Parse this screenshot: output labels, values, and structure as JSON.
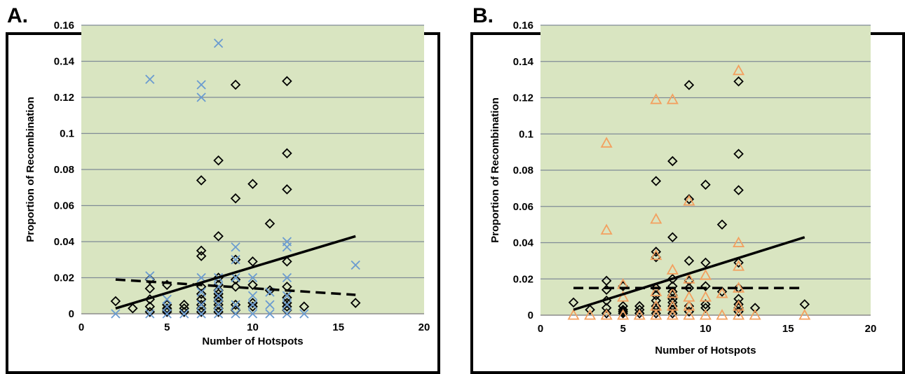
{
  "colors": {
    "plot_bg": "#d9e5c1",
    "gridline": "#7f8a96",
    "diamond": "#000000",
    "cross": "#6a9bd0",
    "triangle": "#f3a05f"
  },
  "chart_data": [
    {
      "panel_label": "A.",
      "type": "scatter",
      "xlabel": "Number of Hotspots",
      "ylabel": "Proportion of Recombination",
      "xlim": [
        0,
        20
      ],
      "ylim": [
        0,
        0.16
      ],
      "xticks": [
        "0",
        "5",
        "10",
        "15",
        "20"
      ],
      "yticks": [
        "0",
        "0.02",
        "0.04",
        "0.06",
        "0.08",
        "0.1",
        "0.12",
        "0.14",
        "0.16"
      ],
      "grid": true,
      "series": [
        {
          "marker": "diamond",
          "color": "#000000",
          "x": [
            2,
            3,
            4,
            4,
            4,
            4,
            4,
            5,
            5,
            5,
            5,
            5,
            6,
            6,
            6,
            7,
            7,
            7,
            7,
            7,
            7,
            7,
            7,
            7,
            8,
            8,
            8,
            8,
            8,
            8,
            8,
            8,
            8,
            8,
            8,
            9,
            9,
            9,
            9,
            9,
            9,
            9,
            10,
            10,
            10,
            10,
            10,
            11,
            11,
            12,
            12,
            12,
            12,
            12,
            12,
            12,
            12,
            12,
            13,
            16
          ],
          "y": [
            0.007,
            0.003,
            0.019,
            0.014,
            0.008,
            0.004,
            0.001,
            0.016,
            0.005,
            0.003,
            0.002,
            0.001,
            0.005,
            0.003,
            0.001,
            0.074,
            0.035,
            0.032,
            0.015,
            0.011,
            0.008,
            0.005,
            0.003,
            0.001,
            0.085,
            0.043,
            0.02,
            0.016,
            0.013,
            0.011,
            0.009,
            0.007,
            0.005,
            0.003,
            0.001,
            0.127,
            0.064,
            0.03,
            0.019,
            0.015,
            0.005,
            0.002,
            0.072,
            0.029,
            0.016,
            0.006,
            0.004,
            0.05,
            0.013,
            0.129,
            0.089,
            0.069,
            0.029,
            0.015,
            0.009,
            0.006,
            0.004,
            0.002,
            0.004,
            0.006
          ]
        },
        {
          "marker": "x",
          "color": "#6a9bd0",
          "x": [
            2,
            4,
            4,
            4,
            5,
            5,
            5,
            6,
            7,
            7,
            7,
            7,
            7,
            7,
            8,
            8,
            8,
            8,
            8,
            8,
            9,
            9,
            9,
            9,
            9,
            10,
            10,
            10,
            10,
            11,
            11,
            11,
            12,
            12,
            12,
            12,
            12,
            12,
            13,
            16
          ],
          "y": [
            0.0,
            0.13,
            0.021,
            0.0,
            0.008,
            0.004,
            0.0,
            0.0,
            0.127,
            0.12,
            0.02,
            0.012,
            0.005,
            0.0,
            0.15,
            0.02,
            0.015,
            0.01,
            0.005,
            0.0,
            0.037,
            0.03,
            0.02,
            0.005,
            0.0,
            0.02,
            0.01,
            0.005,
            0.0,
            0.012,
            0.005,
            0.0,
            0.04,
            0.037,
            0.02,
            0.01,
            0.005,
            0.0,
            0.0,
            0.027
          ]
        }
      ],
      "trendlines": [
        {
          "style": "solid",
          "x": [
            2,
            16
          ],
          "y": [
            0.003,
            0.043
          ]
        },
        {
          "style": "dashed",
          "x": [
            2,
            16
          ],
          "y": [
            0.019,
            0.0105
          ]
        }
      ]
    },
    {
      "panel_label": "B.",
      "type": "scatter",
      "xlabel": "Number of Hotspots",
      "ylabel": "Proportion of Recombination",
      "xlim": [
        0,
        20
      ],
      "ylim": [
        0,
        0.16
      ],
      "xticks": [
        "0",
        "5",
        "10",
        "15",
        "20"
      ],
      "yticks": [
        "0",
        "0.02",
        "0.04",
        "0.06",
        "0.08",
        "0.1",
        "0.12",
        "0.14",
        "0.16"
      ],
      "grid": true,
      "series": [
        {
          "marker": "diamond",
          "color": "#000000",
          "x": [
            2,
            3,
            4,
            4,
            4,
            4,
            4,
            5,
            5,
            5,
            5,
            5,
            6,
            6,
            6,
            7,
            7,
            7,
            7,
            7,
            7,
            7,
            7,
            7,
            8,
            8,
            8,
            8,
            8,
            8,
            8,
            8,
            8,
            8,
            8,
            9,
            9,
            9,
            9,
            9,
            9,
            9,
            10,
            10,
            10,
            10,
            10,
            11,
            11,
            12,
            12,
            12,
            12,
            12,
            12,
            12,
            12,
            12,
            13,
            16
          ],
          "y": [
            0.007,
            0.003,
            0.019,
            0.014,
            0.008,
            0.004,
            0.001,
            0.016,
            0.005,
            0.003,
            0.002,
            0.001,
            0.005,
            0.003,
            0.001,
            0.074,
            0.035,
            0.032,
            0.015,
            0.011,
            0.008,
            0.005,
            0.003,
            0.001,
            0.085,
            0.043,
            0.02,
            0.016,
            0.013,
            0.011,
            0.009,
            0.007,
            0.005,
            0.003,
            0.001,
            0.127,
            0.064,
            0.03,
            0.019,
            0.015,
            0.005,
            0.002,
            0.072,
            0.029,
            0.016,
            0.006,
            0.004,
            0.05,
            0.013,
            0.129,
            0.089,
            0.069,
            0.029,
            0.015,
            0.009,
            0.006,
            0.004,
            0.002,
            0.004,
            0.006
          ]
        },
        {
          "marker": "triangle",
          "color": "#f3a05f",
          "x": [
            2,
            3,
            4,
            4,
            4,
            5,
            5,
            5,
            6,
            7,
            7,
            7,
            7,
            7,
            7,
            8,
            8,
            8,
            8,
            8,
            9,
            9,
            9,
            9,
            9,
            10,
            10,
            10,
            11,
            11,
            12,
            12,
            12,
            12,
            12,
            12,
            13,
            16
          ],
          "y": [
            0.0,
            0.0,
            0.095,
            0.047,
            0.0,
            0.017,
            0.01,
            0.0,
            0.0,
            0.119,
            0.053,
            0.033,
            0.013,
            0.005,
            0.0,
            0.119,
            0.025,
            0.012,
            0.005,
            0.0,
            0.063,
            0.02,
            0.01,
            0.005,
            0.0,
            0.022,
            0.01,
            0.0,
            0.012,
            0.0,
            0.135,
            0.04,
            0.027,
            0.015,
            0.005,
            0.0,
            0.0,
            0.0
          ]
        }
      ],
      "trendlines": [
        {
          "style": "solid",
          "x": [
            2,
            16
          ],
          "y": [
            0.003,
            0.043
          ]
        },
        {
          "style": "dashed",
          "x": [
            2,
            16
          ],
          "y": [
            0.015,
            0.015
          ]
        }
      ]
    }
  ]
}
